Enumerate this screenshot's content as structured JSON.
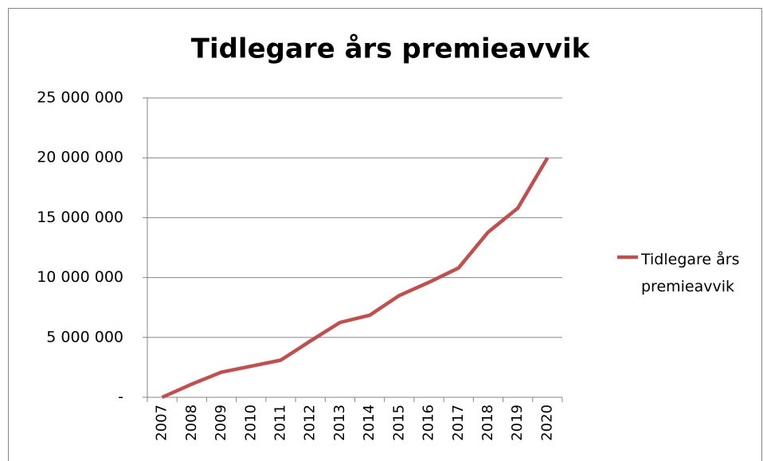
{
  "chart_data": {
    "type": "line",
    "title": "Tidlegare års premieavvik",
    "categories": [
      "2007",
      "2008",
      "2009",
      "2010",
      "2011",
      "2012",
      "2013",
      "2014",
      "2015",
      "2016",
      "2017",
      "2018",
      "2019",
      "2020"
    ],
    "series": [
      {
        "name": "Tidlegare års premieavvik",
        "color": "#c0504d",
        "values": [
          0,
          1100000,
          2100000,
          2600000,
          3100000,
          4700000,
          6250000,
          6850000,
          8500000,
          9600000,
          10800000,
          13800000,
          15800000,
          20000000
        ]
      }
    ],
    "ylim": [
      0,
      25000000
    ],
    "yticks": [
      {
        "value": 0,
        "label": "-"
      },
      {
        "value": 5000000,
        "label": "5 000 000"
      },
      {
        "value": 10000000,
        "label": "10 000 000"
      },
      {
        "value": 15000000,
        "label": "15 000 000"
      },
      {
        "value": 20000000,
        "label": "20 000 000"
      },
      {
        "value": 25000000,
        "label": "25 000 000"
      }
    ],
    "grid": true,
    "legend": "right"
  }
}
